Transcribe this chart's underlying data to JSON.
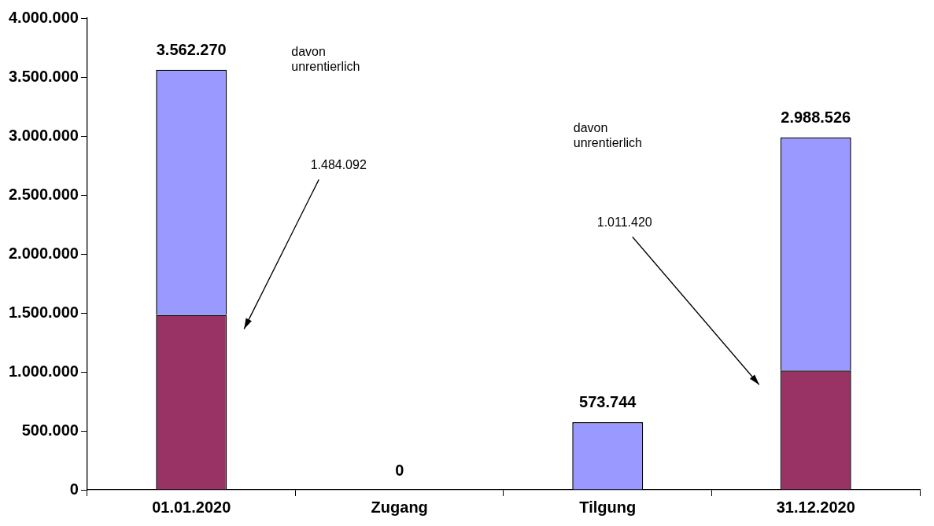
{
  "chart_data": {
    "type": "bar",
    "stacked": true,
    "categories": [
      "01.01.2020",
      "Zugang",
      "Tilgung",
      "31.12.2020"
    ],
    "series": [
      {
        "color": "#993366",
        "values": [
          1484092,
          null,
          null,
          1011420
        ]
      },
      {
        "color": "#9999ff",
        "values": [
          2078178,
          null,
          573744,
          1977106
        ]
      }
    ],
    "totals": [
      "3.562.270",
      "0",
      "573.744",
      "2.988.526"
    ],
    "ylim": [
      0,
      4000000
    ],
    "yticks": [
      {
        "value": 0,
        "label": "0"
      },
      {
        "value": 500000,
        "label": "500.000"
      },
      {
        "value": 1000000,
        "label": "1.000.000"
      },
      {
        "value": 1500000,
        "label": "1.500.000"
      },
      {
        "value": 2000000,
        "label": "2.000.000"
      },
      {
        "value": 2500000,
        "label": "2.500.000"
      },
      {
        "value": 3000000,
        "label": "3.000.000"
      },
      {
        "value": 3500000,
        "label": "3.500.000"
      },
      {
        "value": 4000000,
        "label": "4.000.000"
      }
    ],
    "grid": false,
    "legend": false,
    "annotations": [
      "davon unrentierlich",
      "1.484.092",
      "davon unrentierlich",
      "1.011.420"
    ]
  }
}
